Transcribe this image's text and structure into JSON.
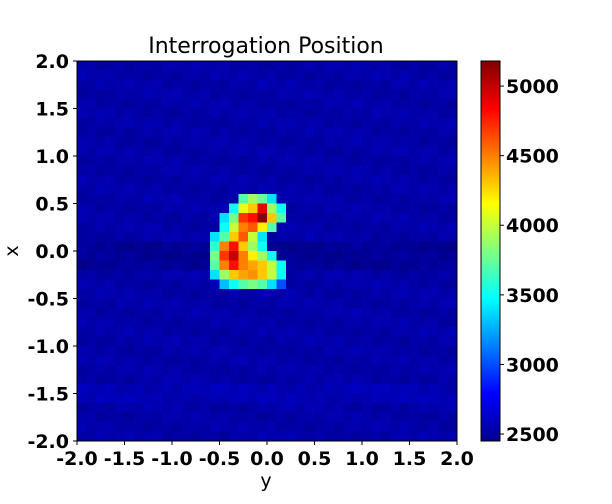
{
  "chart_data": {
    "type": "heatmap",
    "title": "Interrogation Position",
    "xlabel": "y",
    "ylabel": "x",
    "xlim": [
      -2.0,
      2.0
    ],
    "ylim": [
      -2.0,
      2.0
    ],
    "xticks": [
      "-2.0",
      "-1.5",
      "-1.0",
      "-0.5",
      "0.0",
      "0.5",
      "1.0",
      "1.5",
      "2.0"
    ],
    "yticks": [
      "2.0",
      "1.5",
      "1.0",
      "0.5",
      "0.0",
      "-0.5",
      "-1.0",
      "-1.5",
      "-2.0"
    ],
    "colorbar": {
      "colormap": "jet",
      "vmin": 2450,
      "vmax": 5180,
      "ticks": [
        "5000",
        "4500",
        "4000",
        "3500",
        "3000",
        "2500"
      ]
    },
    "grid": {
      "rows": 40,
      "cols": 40,
      "background": 2560
    },
    "hot_cells": [
      [
        14,
        17,
        3700
      ],
      [
        14,
        18,
        3900
      ],
      [
        14,
        19,
        3750
      ],
      [
        14,
        20,
        3400
      ],
      [
        15,
        16,
        3500
      ],
      [
        15,
        17,
        4100
      ],
      [
        15,
        18,
        4300
      ],
      [
        15,
        19,
        4900
      ],
      [
        15,
        20,
        3900
      ],
      [
        15,
        21,
        3500
      ],
      [
        16,
        15,
        3400
      ],
      [
        16,
        16,
        3800
      ],
      [
        16,
        17,
        4700
      ],
      [
        16,
        18,
        4800
      ],
      [
        16,
        19,
        5150
      ],
      [
        16,
        20,
        4300
      ],
      [
        16,
        21,
        3700
      ],
      [
        17,
        15,
        3500
      ],
      [
        17,
        16,
        4000
      ],
      [
        17,
        17,
        4500
      ],
      [
        17,
        18,
        4600
      ],
      [
        17,
        19,
        4200
      ],
      [
        17,
        20,
        3700
      ],
      [
        18,
        14,
        3400
      ],
      [
        18,
        15,
        3700
      ],
      [
        18,
        16,
        4300
      ],
      [
        18,
        17,
        4600
      ],
      [
        18,
        18,
        4000
      ],
      [
        18,
        19,
        3400
      ],
      [
        19,
        14,
        3600
      ],
      [
        19,
        15,
        4500
      ],
      [
        19,
        16,
        4800
      ],
      [
        19,
        17,
        4300
      ],
      [
        19,
        18,
        3900
      ],
      [
        19,
        19,
        3500
      ],
      [
        20,
        14,
        3800
      ],
      [
        20,
        15,
        4700
      ],
      [
        20,
        16,
        5000
      ],
      [
        20,
        17,
        4500
      ],
      [
        20,
        18,
        4200
      ],
      [
        20,
        19,
        3900
      ],
      [
        20,
        20,
        3500
      ],
      [
        21,
        14,
        3700
      ],
      [
        21,
        15,
        4500
      ],
      [
        21,
        16,
        4800
      ],
      [
        21,
        17,
        4500
      ],
      [
        21,
        18,
        4400
      ],
      [
        21,
        19,
        4300
      ],
      [
        21,
        20,
        4000
      ],
      [
        21,
        21,
        3500
      ],
      [
        22,
        14,
        3400
      ],
      [
        22,
        15,
        3900
      ],
      [
        22,
        16,
        4300
      ],
      [
        22,
        17,
        4400
      ],
      [
        22,
        18,
        4450
      ],
      [
        22,
        19,
        4300
      ],
      [
        22,
        20,
        4000
      ],
      [
        22,
        21,
        3500
      ],
      [
        23,
        15,
        3300
      ],
      [
        23,
        16,
        3500
      ],
      [
        23,
        17,
        3700
      ],
      [
        23,
        18,
        3800
      ],
      [
        23,
        19,
        3700
      ],
      [
        23,
        20,
        3400
      ],
      [
        23,
        21,
        3000
      ]
    ]
  }
}
